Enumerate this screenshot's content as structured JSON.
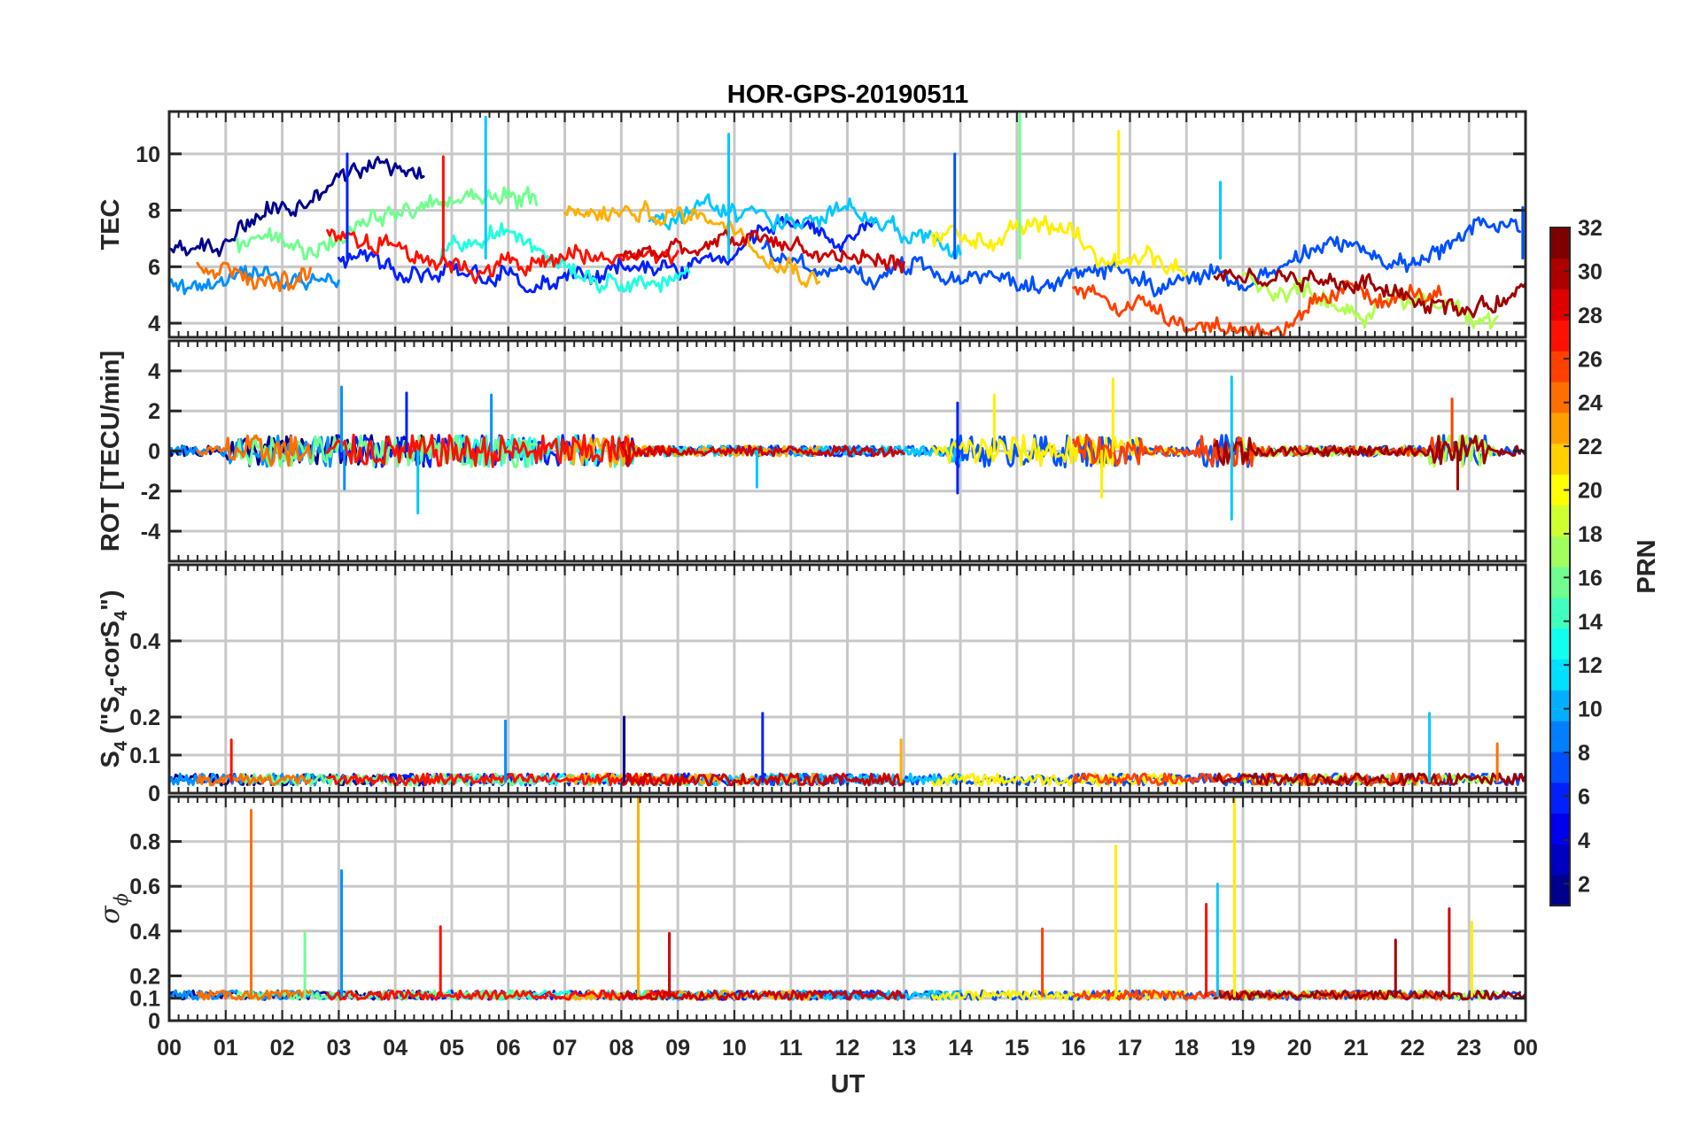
{
  "chart_data": {
    "type": "line",
    "title": "HOR-GPS-20190511",
    "xlabel": "UT",
    "x_ticks": [
      "00",
      "01",
      "02",
      "03",
      "04",
      "05",
      "06",
      "07",
      "08",
      "09",
      "10",
      "11",
      "12",
      "13",
      "14",
      "15",
      "16",
      "17",
      "18",
      "19",
      "20",
      "21",
      "22",
      "23",
      "00"
    ],
    "xlim": [
      0,
      24
    ],
    "grid": true,
    "panels": [
      {
        "id": "tec",
        "ylabel": "TEC",
        "ylim": [
          3.5,
          11.5
        ],
        "yticks": [
          4,
          6,
          8,
          10
        ],
        "ytick_labels": [
          "4",
          "6",
          "8",
          "10"
        ],
        "baseline": 6.3,
        "noise": 0.45
      },
      {
        "id": "rot",
        "ylabel": "ROT [TECU/min]",
        "ylim": [
          -5.5,
          5.5
        ],
        "yticks": [
          -4,
          -2,
          0,
          2,
          4
        ],
        "ytick_labels": [
          "-4",
          "-2",
          "0",
          "2",
          "4"
        ],
        "baseline": 0.0,
        "noise": 0.25
      },
      {
        "id": "s4",
        "ylabel_parts": [
          "S",
          "4",
          " (\"S",
          "4",
          "-corS",
          "4",
          "\")"
        ],
        "ylim": [
          0,
          0.6
        ],
        "yticks": [
          0,
          0.1,
          0.2,
          0.4
        ],
        "ytick_labels": [
          "0",
          "0.1",
          "0.2",
          "0.4"
        ],
        "baseline": 0.03,
        "noise": 0.02
      },
      {
        "id": "sigma",
        "ylabel_parts": [
          "σ",
          "ϕ"
        ],
        "ylim": [
          0,
          1.0
        ],
        "yticks": [
          0,
          0.1,
          0.2,
          0.4,
          0.6,
          0.8
        ],
        "ytick_labels": [
          "0",
          "0.1",
          "0.2",
          "0.4",
          "0.6",
          "0.8"
        ],
        "baseline": 0.11,
        "noise": 0.025
      }
    ],
    "series": [
      {
        "name": "PRN 02",
        "prn": 2,
        "start": 0.0,
        "end": 4.5,
        "color": "#00008f"
      },
      {
        "name": "PRN 05",
        "prn": 5,
        "start": 3.0,
        "end": 12.5,
        "color": "#0020ff"
      },
      {
        "name": "PRN 07",
        "prn": 7,
        "start": 10.5,
        "end": 23.9,
        "color": "#0050ff"
      },
      {
        "name": "PRN 10",
        "prn": 10,
        "start": 0.0,
        "end": 3.0,
        "color": "#0090ff"
      },
      {
        "name": "PRN 12",
        "prn": 12,
        "start": 8.5,
        "end": 14.0,
        "color": "#00c8ff"
      },
      {
        "name": "PRN 14",
        "prn": 14,
        "start": 4.8,
        "end": 9.2,
        "color": "#20ffdf"
      },
      {
        "name": "PRN 16",
        "prn": 16,
        "start": 1.2,
        "end": 6.5,
        "color": "#70ff8f"
      },
      {
        "name": "PRN 18",
        "prn": 18,
        "start": 19.0,
        "end": 23.5,
        "color": "#b0ff4f"
      },
      {
        "name": "PRN 20",
        "prn": 20,
        "start": 13.5,
        "end": 18.0,
        "color": "#ffef00"
      },
      {
        "name": "PRN 22",
        "prn": 22,
        "start": 7.0,
        "end": 11.5,
        "color": "#ffaf00"
      },
      {
        "name": "PRN 25",
        "prn": 25,
        "start": 0.5,
        "end": 2.5,
        "color": "#ff6f00"
      },
      {
        "name": "PRN 26",
        "prn": 26,
        "start": 16.0,
        "end": 22.5,
        "color": "#ff4000"
      },
      {
        "name": "PRN 28",
        "prn": 28,
        "start": 2.8,
        "end": 9.0,
        "color": "#ff1000"
      },
      {
        "name": "PRN 30",
        "prn": 30,
        "start": 8.0,
        "end": 13.0,
        "color": "#cf0000"
      },
      {
        "name": "PRN 31",
        "prn": 31,
        "start": 18.5,
        "end": 24.0,
        "color": "#9f0000"
      }
    ],
    "spikes": [
      {
        "panel": "tec",
        "prn": 5,
        "t": 3.15,
        "value": 10.0
      },
      {
        "panel": "tec",
        "prn": 12,
        "t": 5.6,
        "value": 11.3
      },
      {
        "panel": "tec",
        "prn": 28,
        "t": 4.85,
        "value": 9.9
      },
      {
        "panel": "tec",
        "prn": 12,
        "t": 9.9,
        "value": 10.7
      },
      {
        "panel": "tec",
        "prn": 7,
        "t": 13.9,
        "value": 10.0
      },
      {
        "panel": "tec",
        "prn": 16,
        "t": 15.05,
        "value": 11.4
      },
      {
        "panel": "tec",
        "prn": 20,
        "t": 16.8,
        "value": 10.8
      },
      {
        "panel": "tec",
        "prn": 12,
        "t": 18.6,
        "value": 9.0
      },
      {
        "panel": "tec",
        "prn": 7,
        "t": 23.95,
        "value": 8.1
      },
      {
        "panel": "rot",
        "prn": 10,
        "t": 3.05,
        "value": 3.2
      },
      {
        "panel": "rot",
        "prn": 10,
        "t": 3.1,
        "value": -1.9
      },
      {
        "panel": "rot",
        "prn": 12,
        "t": 4.4,
        "value": -3.1
      },
      {
        "panel": "rot",
        "prn": 5,
        "t": 4.2,
        "value": 2.9
      },
      {
        "panel": "rot",
        "prn": 10,
        "t": 5.7,
        "value": 2.8
      },
      {
        "panel": "rot",
        "prn": 12,
        "t": 10.4,
        "value": -1.8
      },
      {
        "panel": "rot",
        "prn": 5,
        "t": 13.95,
        "value": 2.4
      },
      {
        "panel": "rot",
        "prn": 5,
        "t": 13.95,
        "value": -2.1
      },
      {
        "panel": "rot",
        "prn": 20,
        "t": 14.6,
        "value": 2.8
      },
      {
        "panel": "rot",
        "prn": 20,
        "t": 16.7,
        "value": 3.6
      },
      {
        "panel": "rot",
        "prn": 20,
        "t": 16.5,
        "value": -2.3
      },
      {
        "panel": "rot",
        "prn": 12,
        "t": 18.8,
        "value": 3.7
      },
      {
        "panel": "rot",
        "prn": 12,
        "t": 18.8,
        "value": -3.4
      },
      {
        "panel": "rot",
        "prn": 26,
        "t": 22.7,
        "value": 2.6
      },
      {
        "panel": "rot",
        "prn": 31,
        "t": 22.8,
        "value": -1.9
      },
      {
        "panel": "s4",
        "prn": 10,
        "t": 5.95,
        "value": 0.19
      },
      {
        "panel": "s4",
        "prn": 2,
        "t": 8.05,
        "value": 0.2
      },
      {
        "panel": "s4",
        "prn": 5,
        "t": 10.5,
        "value": 0.21
      },
      {
        "panel": "s4",
        "prn": 28,
        "t": 1.1,
        "value": 0.14
      },
      {
        "panel": "s4",
        "prn": 22,
        "t": 12.95,
        "value": 0.14
      },
      {
        "panel": "s4",
        "prn": 12,
        "t": 22.3,
        "value": 0.21
      },
      {
        "panel": "s4",
        "prn": 25,
        "t": 23.5,
        "value": 0.13
      },
      {
        "panel": "sigma",
        "prn": 25,
        "t": 1.45,
        "value": 0.94
      },
      {
        "panel": "sigma",
        "prn": 10,
        "t": 3.05,
        "value": 0.67
      },
      {
        "panel": "sigma",
        "prn": 22,
        "t": 8.3,
        "value": 1.0
      },
      {
        "panel": "sigma",
        "prn": 20,
        "t": 16.75,
        "value": 0.78
      },
      {
        "panel": "sigma",
        "prn": 20,
        "t": 18.85,
        "value": 1.0
      },
      {
        "panel": "sigma",
        "prn": 12,
        "t": 18.55,
        "value": 0.61
      },
      {
        "panel": "sigma",
        "prn": 28,
        "t": 18.35,
        "value": 0.52
      },
      {
        "panel": "sigma",
        "prn": 30,
        "t": 22.65,
        "value": 0.5
      },
      {
        "panel": "sigma",
        "prn": 20,
        "t": 23.05,
        "value": 0.44
      },
      {
        "panel": "sigma",
        "prn": 30,
        "t": 8.85,
        "value": 0.39
      },
      {
        "panel": "sigma",
        "prn": 28,
        "t": 4.8,
        "value": 0.42
      },
      {
        "panel": "sigma",
        "prn": 16,
        "t": 2.4,
        "value": 0.39
      },
      {
        "panel": "sigma",
        "prn": 26,
        "t": 15.45,
        "value": 0.41
      },
      {
        "panel": "sigma",
        "prn": 31,
        "t": 21.7,
        "value": 0.36
      }
    ],
    "colorbar": {
      "label": "PRN",
      "range": [
        1,
        32
      ],
      "ticks": [
        2,
        4,
        6,
        8,
        10,
        12,
        14,
        16,
        18,
        20,
        22,
        24,
        26,
        28,
        30,
        32
      ],
      "tick_labels": [
        "2",
        "4",
        "6",
        "8",
        "10",
        "12",
        "14",
        "16",
        "18",
        "20",
        "22",
        "24",
        "26",
        "28",
        "30",
        "32"
      ],
      "colormap": "jet",
      "colors": [
        "#00008f",
        "#0000bf",
        "#0000ef",
        "#0020ff",
        "#0050ff",
        "#0080ff",
        "#00b0ff",
        "#00e0ff",
        "#10ffef",
        "#40ffbf",
        "#70ff8f",
        "#a0ff5f",
        "#d0ff2f",
        "#ffff00",
        "#ffcf00",
        "#ff9f00",
        "#ff6f00",
        "#ff4000",
        "#ff1000",
        "#df0000",
        "#af0000",
        "#800000"
      ]
    }
  }
}
